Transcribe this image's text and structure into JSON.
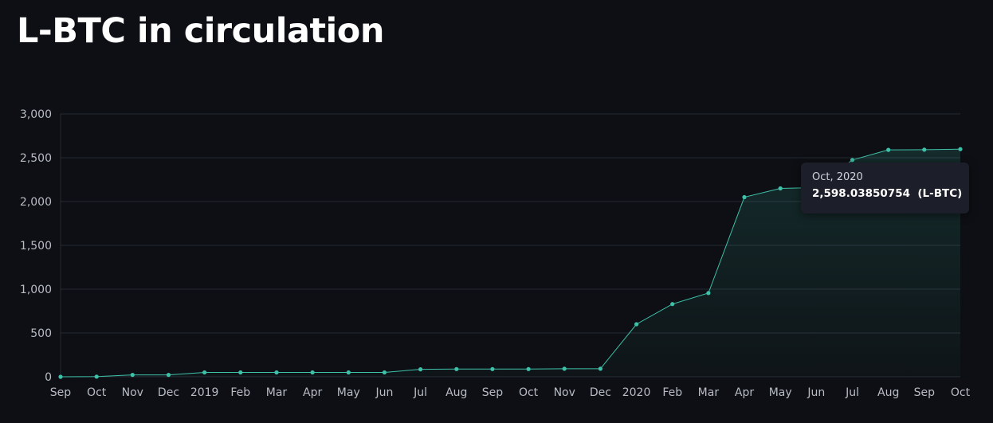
{
  "title": "L-BTC in circulation",
  "tooltip": {
    "date": "Oct, 2020",
    "value": "2,598.03850754",
    "unit": "(L-BTC)"
  },
  "colors": {
    "background": "#0d0f14",
    "line": "#3ec1a8",
    "grid": "#262a33",
    "tooltip_bg": "#1c1f29"
  },
  "chart_data": {
    "type": "area",
    "title": "L-BTC in circulation",
    "xlabel": "",
    "ylabel": "",
    "grid": true,
    "ylim": [
      0,
      3000
    ],
    "yticks": [
      "0",
      "500",
      "1,000",
      "1,500",
      "2,000",
      "2,500",
      "3,000"
    ],
    "categories": [
      "Sep",
      "Oct",
      "Nov",
      "Dec",
      "2019",
      "Feb",
      "Mar",
      "Apr",
      "May",
      "Jun",
      "Jul",
      "Aug",
      "Sep",
      "Oct",
      "Nov",
      "Dec",
      "2020",
      "Feb",
      "Mar",
      "Apr",
      "May",
      "Jun",
      "Jul",
      "Aug",
      "Sep",
      "Oct"
    ],
    "series": [
      {
        "values": [
          0,
          2,
          22,
          22,
          50,
          50,
          50,
          50,
          50,
          50,
          85,
          88,
          88,
          88,
          92,
          92,
          600,
          830,
          955,
          2050,
          2150,
          2160,
          2475,
          2590,
          2592,
          2598.03850754
        ]
      }
    ]
  }
}
